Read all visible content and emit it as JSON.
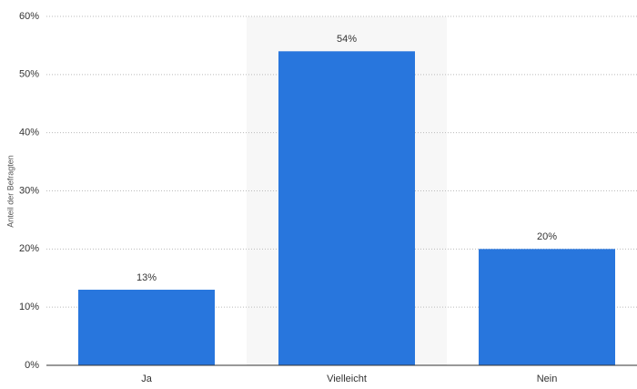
{
  "chart_data": {
    "type": "bar",
    "y_label": "Anteil der Befragten",
    "categories": [
      "Ja",
      "Vielleicht",
      "Nein"
    ],
    "values": [
      13,
      54,
      20
    ],
    "value_labels": [
      "13%",
      "54%",
      "20%"
    ],
    "color": "#2876dd",
    "ylim": [
      0,
      60
    ],
    "yticks": [
      {
        "value": 0,
        "label": "0%"
      },
      {
        "value": 10,
        "label": "10%"
      },
      {
        "value": 20,
        "label": "20%"
      },
      {
        "value": 30,
        "label": "30%"
      },
      {
        "value": 40,
        "label": "40%"
      },
      {
        "value": 50,
        "label": "50%"
      },
      {
        "value": 60,
        "label": "60%"
      }
    ],
    "grid": true
  }
}
